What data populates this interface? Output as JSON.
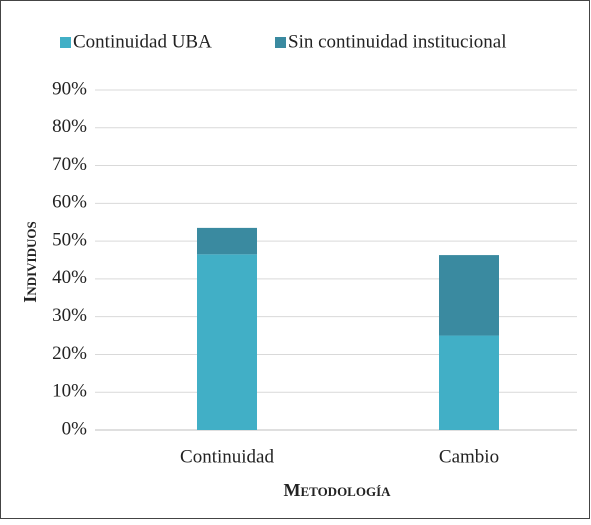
{
  "chart_data": {
    "type": "stacked_bar",
    "categories": [
      "Continuidad",
      "Cambio"
    ],
    "series": [
      {
        "name": "Continuidad UBA",
        "color": "#41afc6",
        "values": [
          46.5,
          25
        ]
      },
      {
        "name": "Sin continuidad institucional",
        "color": "#3a8aa0",
        "values": [
          7,
          21.3
        ]
      }
    ],
    "ylim": [
      0,
      90
    ],
    "yticks": [
      {
        "value": 0,
        "label": "0%"
      },
      {
        "value": 10,
        "label": "10%"
      },
      {
        "value": 20,
        "label": "20%"
      },
      {
        "value": 30,
        "label": "30%"
      },
      {
        "value": 40,
        "label": "40%"
      },
      {
        "value": 50,
        "label": "50%"
      },
      {
        "value": 60,
        "label": "60%"
      },
      {
        "value": 70,
        "label": "70%"
      },
      {
        "value": 80,
        "label": "80%"
      },
      {
        "value": 90,
        "label": "90%"
      }
    ],
    "x_label": "Metodología",
    "y_label": "Individuos",
    "grid": true,
    "legend": "top"
  }
}
